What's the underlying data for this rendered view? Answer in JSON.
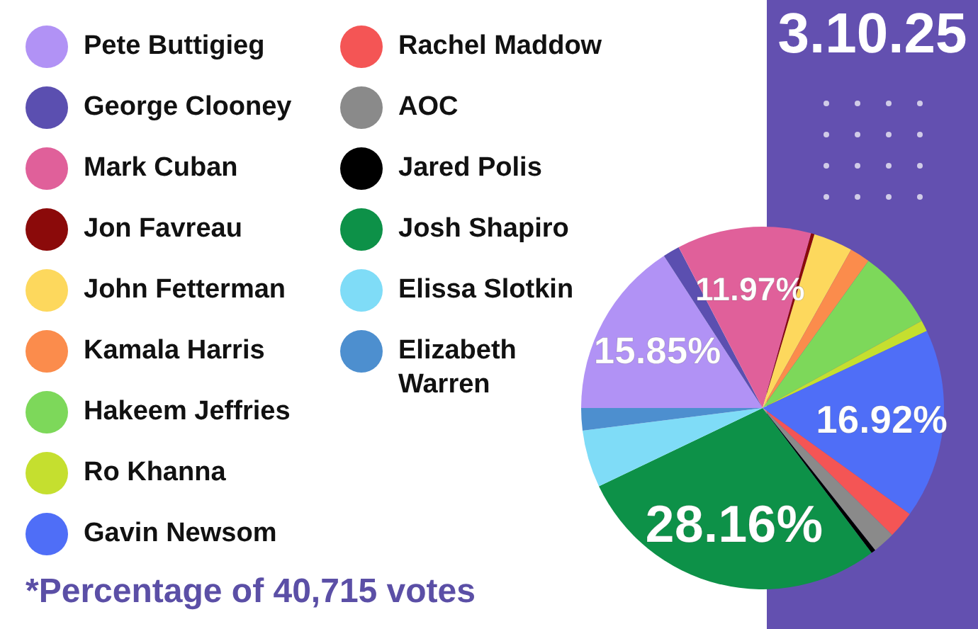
{
  "chart_data": {
    "type": "pie",
    "title": "3.10.25",
    "categories": [
      "Pete Buttigieg",
      "George Clooney",
      "Mark Cuban",
      "Jon Favreau",
      "John Fetterman",
      "Kamala Harris",
      "Hakeem Jeffries",
      "Ro Khanna",
      "Gavin Newsom",
      "Rachel Maddow",
      "AOC",
      "Jared Polis",
      "Josh Shapiro",
      "Elissa Slotkin",
      "Elizabeth Warren"
    ],
    "values": [
      15.85,
      1.5,
      11.97,
      0.3,
      3.5,
      1.8,
      7.1,
      1.0,
      16.92,
      2.4,
      2.0,
      0.4,
      28.16,
      5.1,
      2.0
    ],
    "value_labels": [
      "15.85%",
      null,
      "11.97%",
      null,
      null,
      null,
      null,
      null,
      "16.92%",
      null,
      null,
      null,
      "28.16%",
      null,
      null
    ],
    "colors": [
      "#b192f5",
      "#5b4fb0",
      "#e0609a",
      "#8b0a0a",
      "#fdd85d",
      "#fb8c4c",
      "#7dd85a",
      "#c5df2f",
      "#4f6ef7",
      "#f45555",
      "#8a8a8a",
      "#000000",
      "#0d9148",
      "#7fdcf7",
      "#4d8fcf"
    ],
    "legend": "left",
    "annotations": [
      "*Percentage of 40,715 votes"
    ]
  }
}
